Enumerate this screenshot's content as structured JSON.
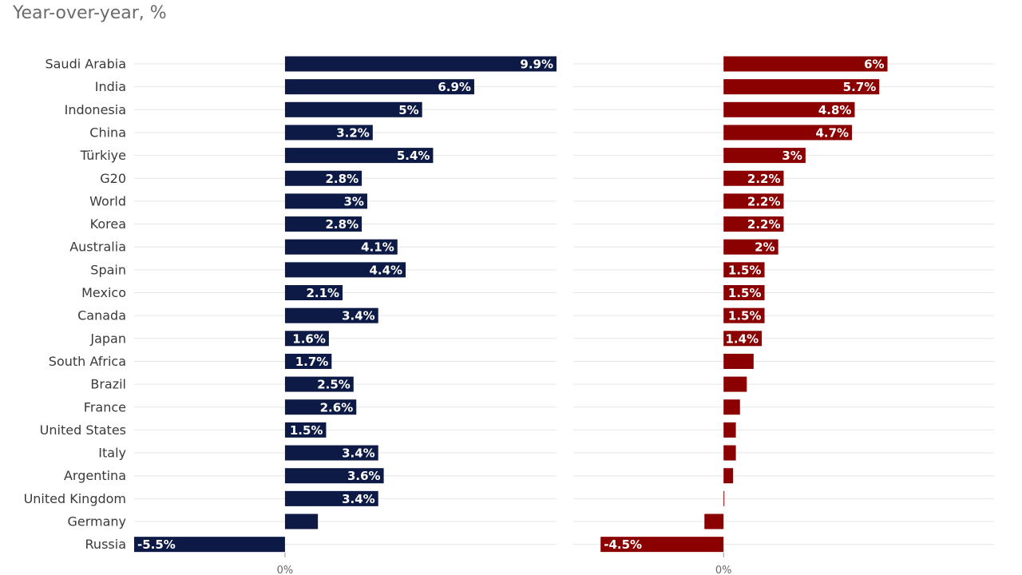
{
  "subtitle": "Year-over-year, %",
  "chart_data": {
    "type": "bar",
    "orientation": "horizontal",
    "categories": [
      "Saudi Arabia",
      "India",
      "Indonesia",
      "China",
      "Türkiye",
      "G20",
      "World",
      "Korea",
      "Australia",
      "Spain",
      "Mexico",
      "Canada",
      "Japan",
      "South Africa",
      "Brazil",
      "France",
      "United States",
      "Italy",
      "Argentina",
      "United Kingdom",
      "Germany",
      "Russia"
    ],
    "series": [
      {
        "name": "left",
        "color": "#0c1a45",
        "values": [
          9.9,
          6.9,
          5,
          3.2,
          5.4,
          2.8,
          3,
          2.8,
          4.1,
          4.4,
          2.1,
          3.4,
          1.6,
          1.7,
          2.5,
          2.6,
          1.5,
          3.4,
          3.6,
          3.4,
          1.2,
          -5.5
        ],
        "labels": [
          "9.9%",
          "6.9%",
          "5%",
          "3.2%",
          "5.4%",
          "2.8%",
          "3%",
          "2.8%",
          "4.1%",
          "4.4%",
          "2.1%",
          "3.4%",
          "1.6%",
          "1.7%",
          "2.5%",
          "2.6%",
          "1.5%",
          "3.4%",
          "3.6%",
          "3.4%",
          "",
          "-5.5%"
        ],
        "xlim": [
          -5.5,
          9.9
        ],
        "zero_label": "0%"
      },
      {
        "name": "right",
        "color": "#8b0000",
        "values": [
          6,
          5.7,
          4.8,
          4.7,
          3,
          2.2,
          2.2,
          2.2,
          2,
          1.5,
          1.5,
          1.5,
          1.4,
          1.1,
          0.85,
          0.6,
          0.45,
          0.45,
          0.35,
          0.03,
          -0.7,
          -4.5
        ],
        "labels": [
          "6%",
          "5.7%",
          "4.8%",
          "4.7%",
          "3%",
          "2.2%",
          "2.2%",
          "2.2%",
          "2%",
          "1.5%",
          "1.5%",
          "1.5%",
          "1.4%",
          "",
          "",
          "",
          "",
          "",
          "",
          "",
          "",
          "-4.5%"
        ],
        "xlim": [
          -5.5,
          9.9
        ],
        "zero_label": "0%"
      }
    ]
  }
}
